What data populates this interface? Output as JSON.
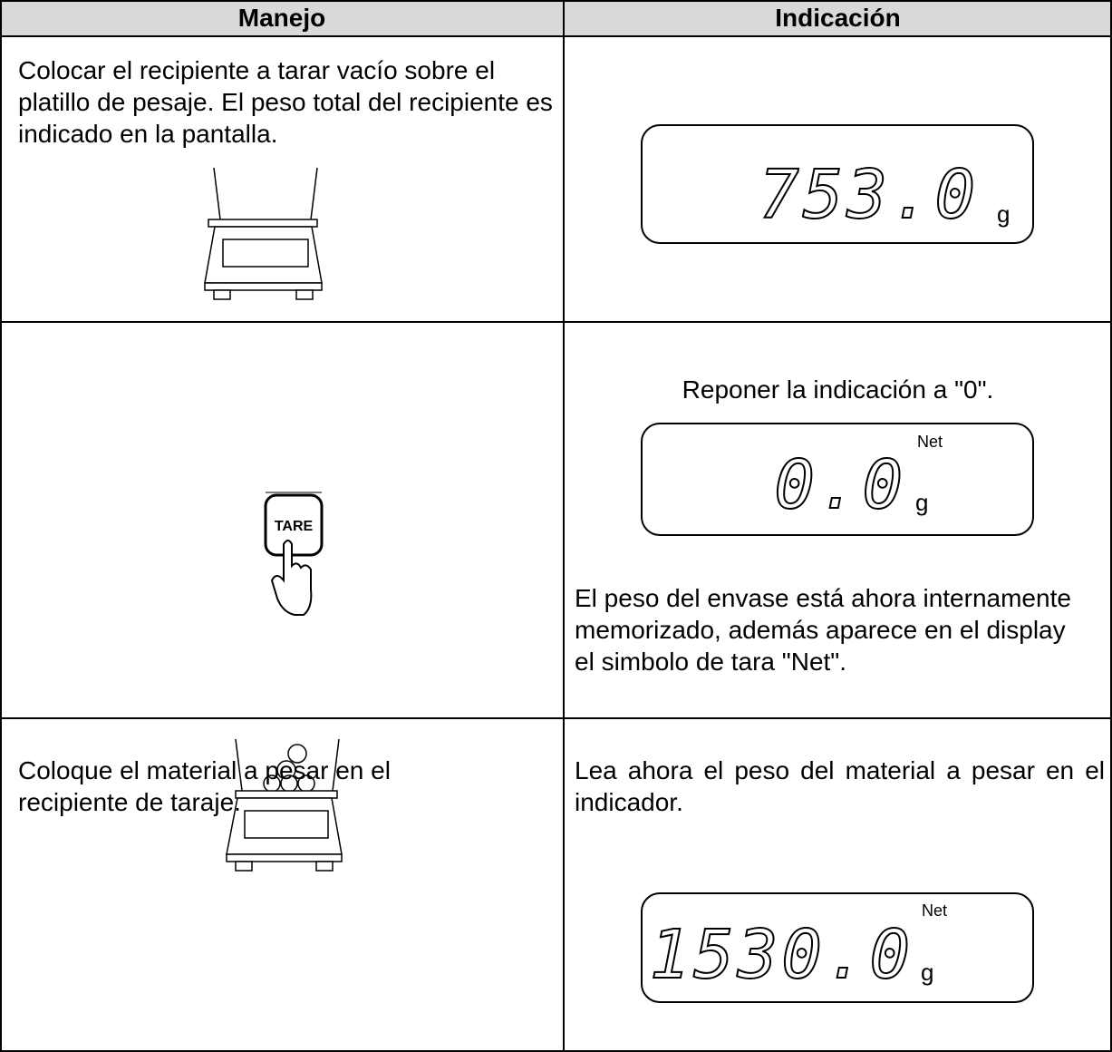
{
  "table": {
    "header": [
      "Manejo",
      "Indicación"
    ],
    "rows": [
      {
        "manejo": "Colocar el recipiente a tarar vacío sobre el platillo de pesaje. El peso total del recipiente es indicado en la pantalla.",
        "display": {
          "reading": "753.0",
          "unit": "g"
        }
      },
      {
        "button": "TARE",
        "hint": "Reponer la indicación a \"0\".",
        "display": {
          "reading": "0.0",
          "symbol": "Net",
          "unit": "g"
        },
        "note": "El peso del envase está ahora internamente memorizado, además aparece en el display el simbolo de tara \"Net\"."
      },
      {
        "manejo": "Coloque el material a pesar en el recipiente de taraje.",
        "note": "Lea ahora el peso del material a pesar en el indicador.",
        "display": {
          "reading": "1530.0",
          "symbol": "Net",
          "unit": "g"
        }
      }
    ]
  }
}
